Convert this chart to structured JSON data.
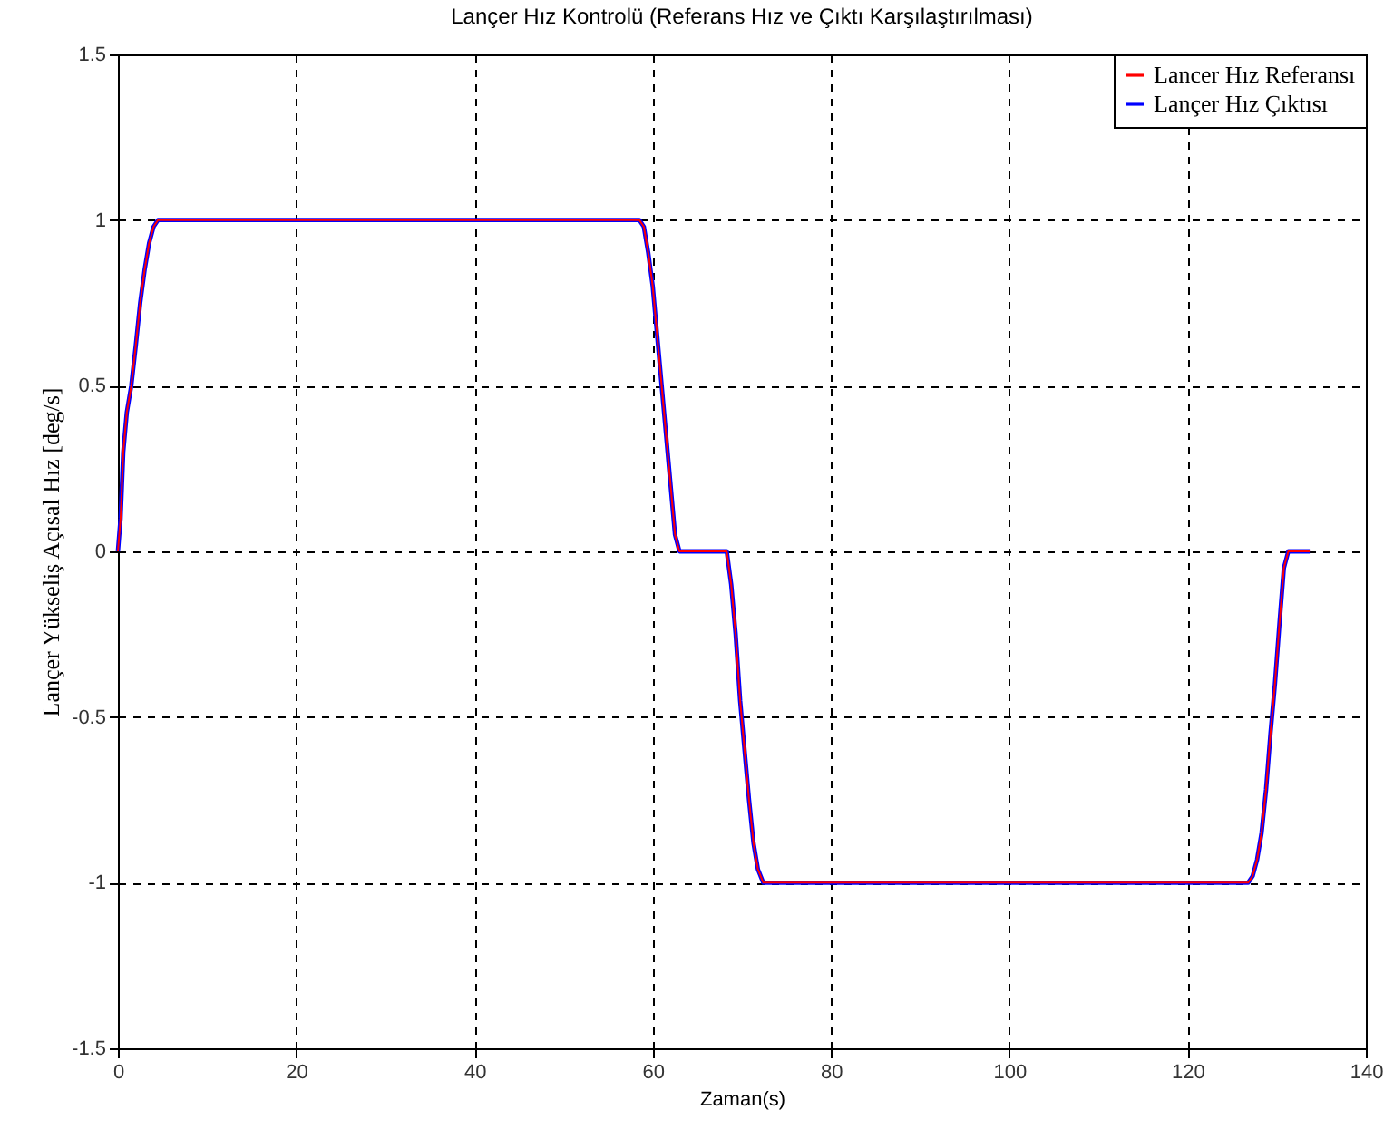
{
  "chart_data": {
    "type": "line",
    "title": "Lançer Hız Kontrolü (Referans Hız ve Çıktı Karşılaştırılması)",
    "xlabel": "Zaman(s)",
    "ylabel": "Lançer Yükseliş Açısal Hız [deg/s]",
    "x": [
      0,
      0.3,
      0.6,
      1,
      1.5,
      2,
      2.5,
      3,
      3.5,
      4,
      4.5,
      58.5,
      59,
      59.5,
      60,
      60.5,
      61,
      61.5,
      62,
      62.5,
      63,
      63.3,
      68.3,
      68.8,
      69.3,
      69.8,
      70.3,
      70.8,
      71.3,
      71.8,
      72.4,
      126.8,
      127.3,
      127.8,
      128.3,
      128.8,
      129.3,
      129.8,
      130.3,
      130.8,
      131.3,
      133.7
    ],
    "series": [
      {
        "name": "Lancer Hız Referansı",
        "color": "#ff0000",
        "values": [
          0,
          0.1,
          0.3,
          0.42,
          0.5,
          0.62,
          0.75,
          0.85,
          0.93,
          0.98,
          1,
          1,
          0.98,
          0.9,
          0.8,
          0.65,
          0.5,
          0.35,
          0.2,
          0.05,
          0,
          0,
          0,
          -0.1,
          -0.25,
          -0.45,
          -0.6,
          -0.75,
          -0.88,
          -0.96,
          -1,
          -1,
          -0.98,
          -0.93,
          -0.85,
          -0.72,
          -0.55,
          -0.4,
          -0.22,
          -0.05,
          0,
          0
        ]
      },
      {
        "name": "Lançer Hız Çıktısı",
        "color": "#0000ff",
        "values": [
          0,
          0.1,
          0.3,
          0.42,
          0.5,
          0.62,
          0.75,
          0.85,
          0.93,
          0.98,
          1,
          1,
          0.98,
          0.9,
          0.8,
          0.65,
          0.5,
          0.35,
          0.2,
          0.05,
          0,
          0,
          0,
          -0.1,
          -0.25,
          -0.45,
          -0.6,
          -0.75,
          -0.88,
          -0.96,
          -1,
          -1,
          -0.98,
          -0.93,
          -0.85,
          -0.72,
          -0.55,
          -0.4,
          -0.22,
          -0.05,
          0,
          0
        ]
      }
    ],
    "xlim": [
      0,
      140
    ],
    "ylim": [
      -1.5,
      1.5
    ],
    "xticks": [
      0,
      20,
      40,
      60,
      80,
      100,
      120,
      140
    ],
    "yticks": [
      -1.5,
      -1,
      -0.5,
      0,
      0.5,
      1,
      1.5
    ],
    "grid": true,
    "legend": "top right"
  }
}
